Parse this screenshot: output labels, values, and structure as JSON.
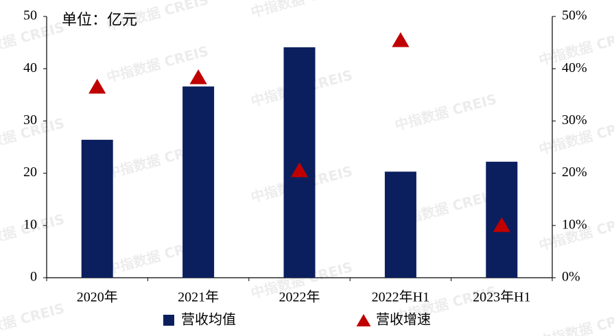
{
  "chart_data": {
    "type": "bar",
    "annotation": "单位：亿元",
    "watermark": "中指数据 CREIS",
    "categories": [
      "2020年",
      "2021年",
      "2022年",
      "2022年H1",
      "2023年H1"
    ],
    "series": [
      {
        "name": "营收均值",
        "type": "bar",
        "color": "#0b1f5e",
        "values": [
          26.4,
          36.6,
          44.1,
          20.3,
          22.2
        ]
      },
      {
        "name": "营收增速",
        "type": "scatter",
        "marker": "triangle",
        "axis": "y2",
        "color": "#c00000",
        "values": [
          36.5,
          38.3,
          20.5,
          45.4,
          10
        ]
      }
    ],
    "ylim": [
      0,
      50
    ],
    "yticks": [
      0,
      10,
      20,
      30,
      40,
      50
    ],
    "y2lim": [
      0,
      50
    ],
    "y2ticks": [
      {
        "value": 0,
        "label": "0%"
      },
      {
        "value": 10,
        "label": "10%"
      },
      {
        "value": 20,
        "label": "20%"
      },
      {
        "value": 30,
        "label": "30%"
      },
      {
        "value": 40,
        "label": "40%"
      },
      {
        "value": 50,
        "label": "50%"
      }
    ],
    "grid": false,
    "legend": "bottom"
  }
}
